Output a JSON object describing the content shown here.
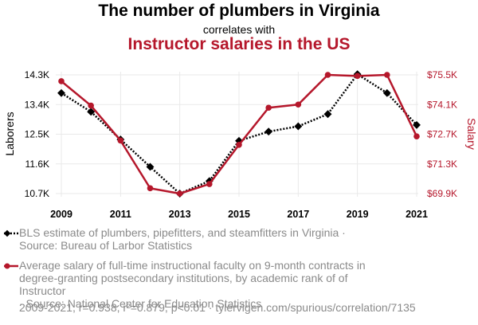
{
  "title_line1": "The number of plumbers in Virginia",
  "title_line2": "correlates with",
  "title_line3": "Instructor salaries in the US",
  "colors": {
    "series1": "#000000",
    "series2": "#b5172b",
    "grid": "#e9e9e9",
    "muted": "#8a8a8a"
  },
  "legend": [
    {
      "icon": "diamond-dotted-line-icon",
      "line1": "BLS estimate of plumbers, pipefitters, and steamfitters in Virginia ·",
      "line2": "Source: Bureau of Larbor Statistics"
    },
    {
      "icon": "circle-solid-line-icon",
      "line1": "Average salary of full-time instructional faculty on 9-month contracts in",
      "line2": "degree-granting postsecondary institutions, by academic rank of of Instructor",
      "line3": "· Source: National Center for Education Statistics"
    }
  ],
  "footer": "2009-2021, r=0.938, r²=0.879, p<0.01 · tylervigen.com/spurious/correlation/7135",
  "chart_data": {
    "type": "line",
    "x": [
      2009,
      2010,
      2011,
      2012,
      2013,
      2014,
      2015,
      2016,
      2017,
      2018,
      2019,
      2020,
      2021
    ],
    "xticks": [
      2009,
      2011,
      2013,
      2015,
      2017,
      2019,
      2021
    ],
    "ylabel_left": "Laborers",
    "ylabel_right": "Salary",
    "left_ticks": [
      {
        "value": 14300,
        "label": "14.3K"
      },
      {
        "value": 13400,
        "label": "13.4K"
      },
      {
        "value": 12500,
        "label": "12.5K"
      },
      {
        "value": 11600,
        "label": "11.6K"
      },
      {
        "value": 10700,
        "label": "10.7K"
      }
    ],
    "right_ticks": [
      {
        "value": 75500,
        "label": "$75.5K"
      },
      {
        "value": 74100,
        "label": "$74.1K"
      },
      {
        "value": 72700,
        "label": "$72.7K"
      },
      {
        "value": 71300,
        "label": "$71.3K"
      },
      {
        "value": 69900,
        "label": "$69.9K"
      }
    ],
    "left_range": [
      10700,
      14300
    ],
    "right_range": [
      69900,
      75500
    ],
    "grid": true,
    "series": [
      {
        "axis": "left",
        "marker": "diamond",
        "style": "dotted",
        "values": [
          13750,
          13180,
          12340,
          11510,
          10700,
          11080,
          12300,
          12580,
          12740,
          13110,
          14320,
          13750,
          12780
        ]
      },
      {
        "axis": "right",
        "marker": "circle",
        "style": "solid",
        "values": [
          75200,
          74050,
          72400,
          70150,
          69900,
          70350,
          72200,
          73950,
          74100,
          75500,
          75450,
          75500,
          72600
        ]
      }
    ]
  }
}
